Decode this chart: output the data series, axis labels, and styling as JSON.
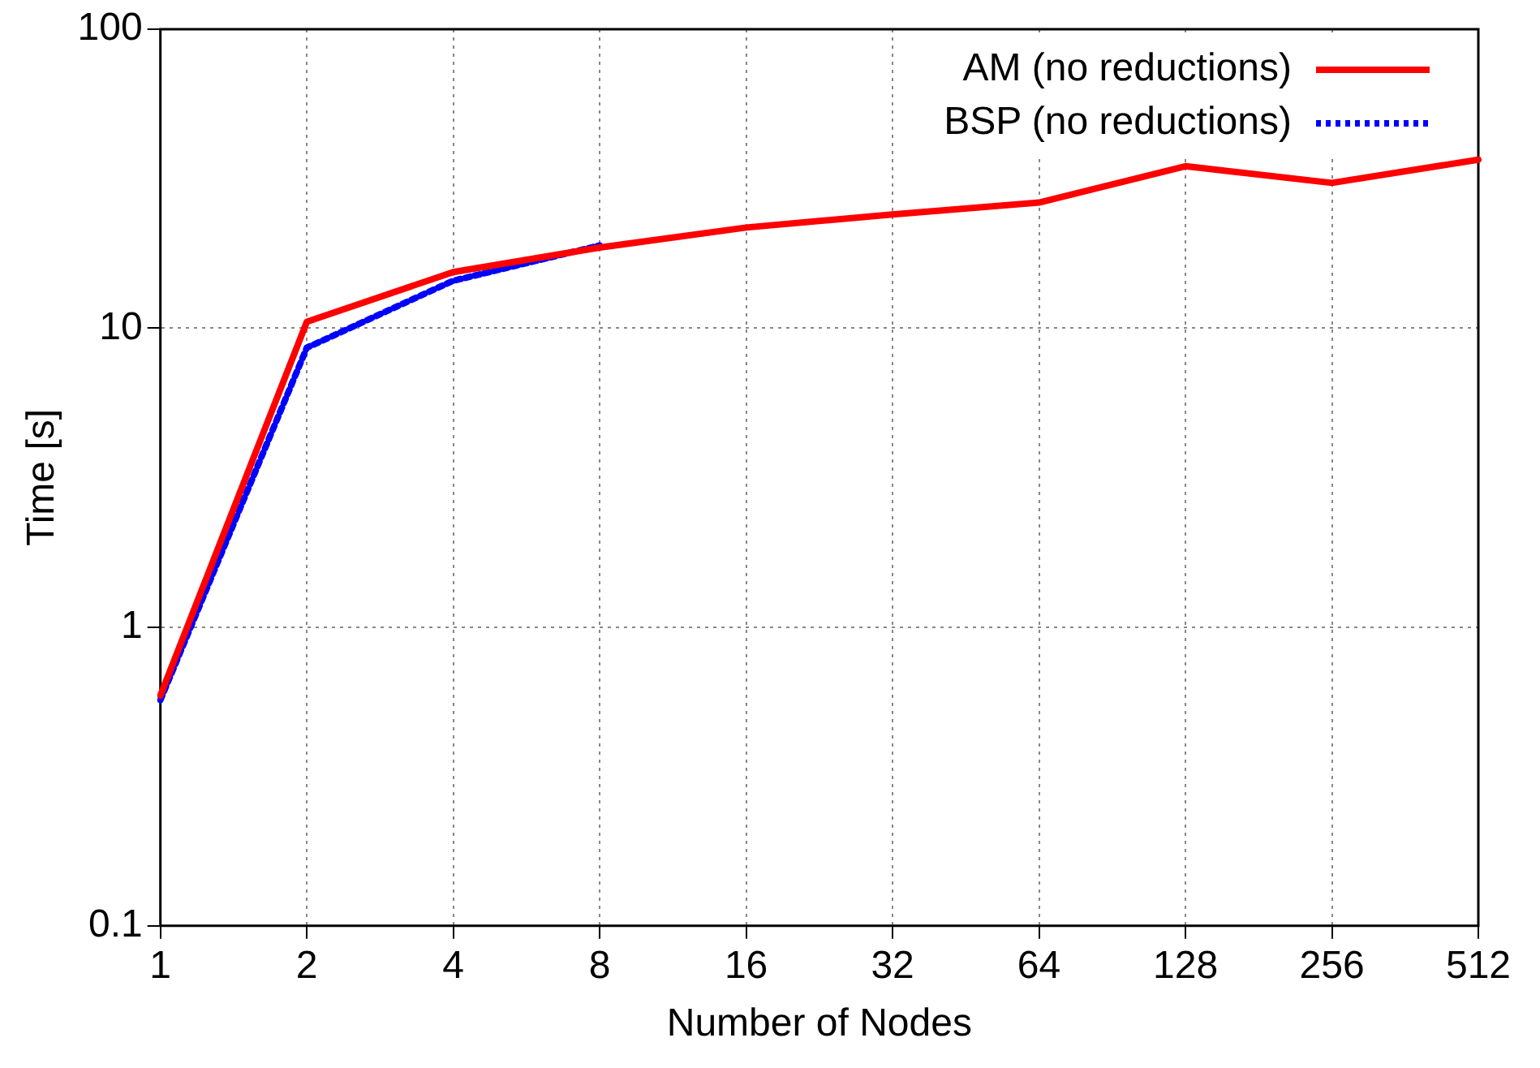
{
  "chart_data": {
    "type": "line",
    "xlabel": "Number of Nodes",
    "ylabel": "Time [s]",
    "categories": [
      "1",
      "2",
      "4",
      "8",
      "16",
      "32",
      "64",
      "128",
      "256",
      "512"
    ],
    "series": [
      {
        "name": "AM (no reductions)",
        "color": "#ff0000",
        "line_style": "solid",
        "values": [
          0.59,
          10.5,
          15.4,
          18.6,
          21.7,
          24,
          26.3,
          34.8,
          30.6,
          36.6
        ]
      },
      {
        "name": "BSP (no reductions)",
        "color": "#0000ff",
        "line_style": "dotted",
        "values": [
          0.57,
          8.6,
          14.4,
          18.9,
          null,
          null,
          null,
          null,
          null,
          null
        ]
      }
    ],
    "log": "y",
    "ylim": [
      0.1,
      100
    ],
    "yticks": [
      0.1,
      1,
      10,
      100
    ],
    "grid": true,
    "legend": "top right",
    "marker": "none"
  }
}
